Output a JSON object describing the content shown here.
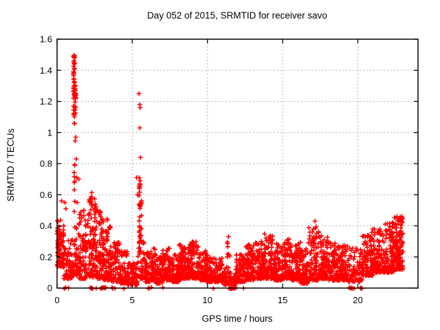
{
  "chart_data": {
    "type": "scatter",
    "title": "Day 052 of 2015, SRMTID for receiver savo",
    "xlabel": "GPS time / hours",
    "ylabel": "SRMTID / TECUs",
    "xlim": [
      0,
      24
    ],
    "ylim": [
      0,
      1.6
    ],
    "xticks": {
      "values": [
        0,
        5,
        10,
        15,
        20
      ],
      "labels": [
        "0",
        "5",
        "10",
        "15",
        "20"
      ]
    },
    "yticks": {
      "values": [
        0,
        0.2,
        0.4,
        0.6,
        0.8,
        1.0,
        1.2,
        1.4,
        1.6
      ],
      "labels": [
        "0",
        "0.2",
        "0.4",
        "0.6",
        "0.8",
        "1",
        "1.2",
        "1.4",
        "1.6"
      ]
    },
    "grid": {
      "show": true,
      "style": "dashed",
      "color": "#b0b0b0"
    },
    "legend": {
      "show": false
    },
    "marker": {
      "shape": "plus",
      "color": "#ff0000",
      "size": 7
    },
    "axis_color": "#000000",
    "background": "#ffffff",
    "summary": "Dense red plus-marker scatter of SRMTID vs GPS time. Baseline noise 0.05-0.35 TECU all day; large spike cluster at ~1.0-1.4 h reaching 1.5 TECU, secondary spike at ~5.5 h reaching 1.25 TECU, moderate activity 1.5-3.5 h up to 0.65, quiet minimum near 11.5 h with points on zero line, slow rise after 12 h to ~0.45 by 23 h; clusters of zero-value points at ~0.5, 2.3, 3-4, 6.2, 11.5-11.9, 19.5 and 20.2 h.",
    "seed": 20150052,
    "points_model": {
      "skew": 1.8,
      "bands": [
        [
          0.0,
          0.45,
          90,
          0.14,
          0.44
        ],
        [
          0.45,
          1.0,
          60,
          0.06,
          0.32
        ],
        [
          1.0,
          1.45,
          50,
          0.08,
          0.4
        ],
        [
          1.45,
          2.1,
          90,
          0.06,
          0.5
        ],
        [
          2.1,
          2.65,
          90,
          0.07,
          0.58
        ],
        [
          2.65,
          3.1,
          80,
          0.06,
          0.5
        ],
        [
          3.1,
          3.6,
          70,
          0.05,
          0.4
        ],
        [
          3.6,
          4.2,
          70,
          0.04,
          0.3
        ],
        [
          4.2,
          4.7,
          60,
          0.03,
          0.24
        ],
        [
          4.7,
          5.35,
          70,
          0.02,
          0.16
        ],
        [
          5.35,
          5.8,
          40,
          0.06,
          0.3
        ],
        [
          5.8,
          6.2,
          60,
          0.04,
          0.24
        ],
        [
          6.2,
          6.6,
          60,
          0.05,
          0.26
        ],
        [
          6.6,
          7.0,
          60,
          0.03,
          0.2
        ],
        [
          7.0,
          7.6,
          90,
          0.05,
          0.26
        ],
        [
          7.6,
          8.1,
          75,
          0.04,
          0.22
        ],
        [
          8.1,
          8.7,
          90,
          0.06,
          0.28
        ],
        [
          8.7,
          9.4,
          100,
          0.06,
          0.3
        ],
        [
          9.4,
          9.9,
          70,
          0.05,
          0.24
        ],
        [
          9.9,
          10.5,
          80,
          0.04,
          0.22
        ],
        [
          10.5,
          11.0,
          70,
          0.04,
          0.2
        ],
        [
          11.0,
          11.5,
          50,
          0.02,
          0.14
        ],
        [
          11.5,
          11.9,
          25,
          0.02,
          0.12
        ],
        [
          11.3,
          11.55,
          8,
          0.2,
          0.33
        ],
        [
          11.9,
          12.5,
          80,
          0.04,
          0.22
        ],
        [
          12.5,
          13.1,
          90,
          0.05,
          0.28
        ],
        [
          13.1,
          13.7,
          90,
          0.06,
          0.3
        ],
        [
          13.7,
          14.4,
          100,
          0.06,
          0.36
        ],
        [
          14.4,
          15.0,
          90,
          0.05,
          0.3
        ],
        [
          15.0,
          15.6,
          90,
          0.06,
          0.32
        ],
        [
          15.6,
          16.2,
          90,
          0.05,
          0.3
        ],
        [
          16.2,
          16.7,
          70,
          0.03,
          0.26
        ],
        [
          16.7,
          17.4,
          100,
          0.05,
          0.4
        ],
        [
          17.4,
          18.0,
          90,
          0.06,
          0.34
        ],
        [
          18.0,
          18.7,
          95,
          0.05,
          0.3
        ],
        [
          18.7,
          19.3,
          85,
          0.05,
          0.28
        ],
        [
          19.3,
          20.3,
          90,
          0.04,
          0.26
        ],
        [
          20.3,
          21.0,
          95,
          0.08,
          0.34
        ],
        [
          21.0,
          21.7,
          100,
          0.1,
          0.38
        ],
        [
          21.7,
          22.4,
          110,
          0.1,
          0.42
        ],
        [
          22.4,
          23.0,
          110,
          0.12,
          0.46
        ]
      ],
      "streaks": [
        [
          1.13,
          1.05,
          1.5,
          45
        ],
        [
          1.2,
          1.12,
          1.32,
          25
        ],
        [
          1.17,
          0.4,
          1.02,
          10
        ],
        [
          0.15,
          0.16,
          0.4,
          18
        ],
        [
          1.8,
          0.1,
          0.5,
          10
        ],
        [
          2.3,
          0.12,
          0.64,
          12
        ],
        [
          2.58,
          0.1,
          0.6,
          10
        ],
        [
          2.85,
          0.1,
          0.52,
          8
        ],
        [
          3.3,
          0.08,
          0.46,
          8
        ],
        [
          5.5,
          0.22,
          0.72,
          28
        ],
        [
          5.57,
          0.28,
          0.58,
          10
        ],
        [
          8.95,
          0.08,
          0.3,
          10
        ],
        [
          14.3,
          0.06,
          0.36,
          10
        ],
        [
          17.2,
          0.06,
          0.42,
          10
        ],
        [
          20.9,
          0.1,
          0.36,
          8
        ],
        [
          22.3,
          0.12,
          0.44,
          10
        ],
        [
          22.7,
          0.14,
          0.45,
          10
        ]
      ],
      "outliers": [
        [
          0.3,
          0.56
        ],
        [
          0.52,
          0.55
        ],
        [
          0.58,
          0.51
        ],
        [
          1.45,
          0.7
        ],
        [
          1.25,
          0.97
        ],
        [
          1.28,
          0.83
        ],
        [
          1.31,
          0.71
        ],
        [
          1.33,
          0.55
        ],
        [
          5.45,
          1.25
        ],
        [
          5.5,
          1.18
        ],
        [
          5.52,
          1.16
        ],
        [
          5.5,
          1.03
        ],
        [
          5.55,
          0.84
        ],
        [
          5.3,
          0.71
        ],
        [
          5.35,
          0.6
        ],
        [
          11.4,
          0.33
        ],
        [
          17.15,
          0.43
        ],
        [
          22.6,
          0.46
        ]
      ],
      "zeros": [
        [
          0.52,
          2
        ],
        [
          0.75,
          1
        ],
        [
          2.28,
          4
        ],
        [
          2.62,
          1
        ],
        [
          2.95,
          2
        ],
        [
          3.08,
          3
        ],
        [
          3.22,
          2
        ],
        [
          3.68,
          2
        ],
        [
          3.86,
          1
        ],
        [
          4.45,
          1
        ],
        [
          6.1,
          2
        ],
        [
          6.28,
          1
        ],
        [
          7.05,
          1
        ],
        [
          10.4,
          1
        ],
        [
          11.55,
          4
        ],
        [
          11.68,
          5
        ],
        [
          11.8,
          4
        ],
        [
          12.42,
          1
        ],
        [
          19.45,
          2
        ],
        [
          19.62,
          2
        ],
        [
          19.78,
          1
        ],
        [
          20.22,
          3
        ]
      ]
    }
  }
}
